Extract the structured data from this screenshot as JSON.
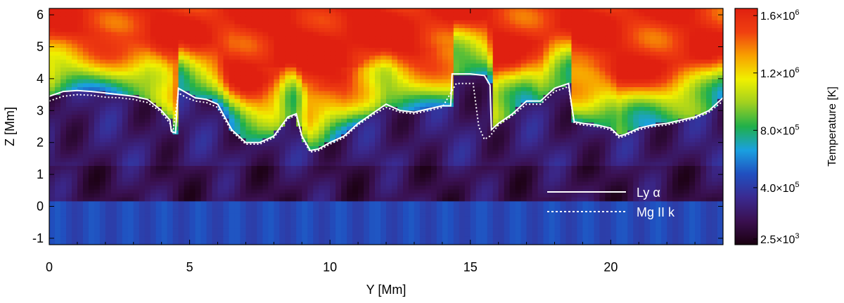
{
  "chart_data": {
    "type": "heatmap",
    "xlabel": "Y [Mm]",
    "ylabel": "Z [Mm]",
    "xlim": [
      0,
      24
    ],
    "ylim": [
      -1.2,
      6.2
    ],
    "x_ticks": [
      0,
      5,
      10,
      15,
      20
    ],
    "y_ticks": [
      -1,
      0,
      1,
      2,
      3,
      4,
      5,
      6
    ],
    "colorbar": {
      "label": "Temperature [K]",
      "ticks": [
        {
          "value": 1600000,
          "mantissa": "1.6×10",
          "exp": "6"
        },
        {
          "value": 1200000,
          "mantissa": "1.2×10",
          "exp": "6"
        },
        {
          "value": 800000,
          "mantissa": "8.0×10",
          "exp": "5"
        },
        {
          "value": 400000,
          "mantissa": "4.0×10",
          "exp": "5"
        },
        {
          "value": 2500,
          "mantissa": "2.5×10",
          "exp": "3"
        }
      ],
      "range": [
        2500,
        1650000
      ],
      "colors": [
        "#1a0010",
        "#3a1050",
        "#3a2a90",
        "#2050c0",
        "#1aa0e0",
        "#20b04a",
        "#a0d020",
        "#f0f000",
        "#f8a000",
        "#f04010",
        "#e02010"
      ]
    },
    "series": [
      {
        "name": "Ly α",
        "style": "solid",
        "x": [
          0,
          0.5,
          1,
          1.5,
          2,
          2.5,
          3,
          3.5,
          4,
          4.3,
          4.35,
          4.5,
          4.6,
          4.9,
          5.2,
          5.6,
          6,
          6.5,
          7,
          7.5,
          8,
          8.5,
          8.8,
          9,
          9.3,
          9.6,
          10,
          10.5,
          11,
          11.5,
          12,
          12.5,
          13,
          13.5,
          14,
          14.3,
          14.35,
          14.5,
          15,
          15.5,
          15.7,
          15.75,
          16,
          16.5,
          17,
          17.5,
          18,
          18.5,
          18.6,
          18.7,
          19,
          19.5,
          20,
          20.3,
          20.5,
          21,
          21.5,
          22,
          22.5,
          23,
          23.5,
          24
        ],
        "y": [
          3.45,
          3.6,
          3.63,
          3.6,
          3.55,
          3.5,
          3.45,
          3.35,
          3.0,
          2.7,
          2.35,
          2.3,
          3.7,
          3.55,
          3.4,
          3.35,
          3.2,
          2.4,
          2.0,
          2.0,
          2.2,
          2.8,
          2.9,
          2.2,
          1.75,
          1.8,
          2.0,
          2.2,
          2.6,
          2.9,
          3.2,
          3.0,
          2.95,
          3.05,
          3.15,
          3.15,
          4.15,
          4.15,
          4.15,
          4.1,
          3.8,
          2.4,
          2.6,
          2.9,
          3.3,
          3.3,
          3.7,
          3.85,
          3.2,
          2.65,
          2.6,
          2.55,
          2.45,
          2.2,
          2.25,
          2.45,
          2.55,
          2.6,
          2.7,
          2.8,
          3.0,
          3.4
        ]
      },
      {
        "name": "Mg II k",
        "style": "dotted",
        "x": [
          0,
          0.5,
          1,
          1.5,
          2,
          2.5,
          3,
          3.5,
          4,
          4.3,
          4.4,
          4.6,
          4.9,
          5.2,
          5.6,
          6,
          6.5,
          7,
          7.5,
          8,
          8.5,
          8.8,
          9,
          9.3,
          9.6,
          10,
          10.5,
          11,
          11.5,
          12,
          12.5,
          13,
          13.5,
          14,
          14.5,
          14.9,
          15.1,
          15.3,
          15.5,
          15.7,
          16,
          16.5,
          17,
          17.5,
          18,
          18.5,
          18.7,
          19,
          19.5,
          20,
          20.3,
          20.5,
          21,
          21.5,
          22,
          22.5,
          23,
          23.5,
          24
        ],
        "y": [
          3.3,
          3.45,
          3.5,
          3.48,
          3.42,
          3.4,
          3.35,
          3.25,
          2.95,
          2.6,
          2.3,
          3.55,
          3.4,
          3.3,
          3.25,
          3.1,
          2.35,
          1.95,
          1.95,
          2.15,
          2.75,
          2.85,
          2.15,
          1.7,
          1.75,
          1.95,
          2.15,
          2.55,
          2.85,
          3.1,
          2.95,
          2.9,
          3.0,
          3.1,
          3.85,
          3.85,
          3.85,
          2.5,
          2.1,
          2.2,
          2.55,
          2.85,
          3.2,
          3.2,
          3.6,
          3.75,
          2.6,
          2.55,
          2.5,
          2.4,
          2.15,
          2.2,
          2.4,
          2.5,
          2.55,
          2.65,
          2.75,
          2.95,
          3.3
        ]
      }
    ],
    "legend_position": "bottom-right"
  }
}
